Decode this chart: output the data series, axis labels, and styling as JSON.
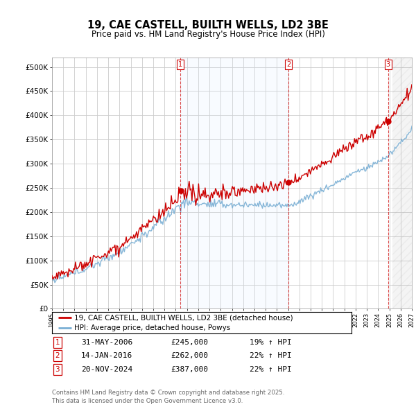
{
  "title": "19, CAE CASTELL, BUILTH WELLS, LD2 3BE",
  "subtitle": "Price paid vs. HM Land Registry's House Price Index (HPI)",
  "ylim": [
    0,
    520000
  ],
  "yticks": [
    0,
    50000,
    100000,
    150000,
    200000,
    250000,
    300000,
    350000,
    400000,
    450000,
    500000
  ],
  "ytick_labels": [
    "£0",
    "£50K",
    "£100K",
    "£150K",
    "£200K",
    "£250K",
    "£300K",
    "£350K",
    "£400K",
    "£450K",
    "£500K"
  ],
  "red_line_color": "#cc0000",
  "blue_line_color": "#7aafd4",
  "blue_fill_color": "#ddeeff",
  "vline_color": "#cc0000",
  "grid_color": "#cccccc",
  "background_color": "#ffffff",
  "legend_items": [
    "19, CAE CASTELL, BUILTH WELLS, LD2 3BE (detached house)",
    "HPI: Average price, detached house, Powys"
  ],
  "transactions": [
    {
      "num": "1",
      "date": "31-MAY-2006",
      "price": "£245,000",
      "hpi": "19% ↑ HPI",
      "year": 2006.42,
      "value": 245000
    },
    {
      "num": "2",
      "date": "14-JAN-2016",
      "price": "£262,000",
      "hpi": "22% ↑ HPI",
      "year": 2016.04,
      "value": 262000
    },
    {
      "num": "3",
      "date": "20-NOV-2024",
      "price": "£387,000",
      "hpi": "22% ↑ HPI",
      "year": 2024.89,
      "value": 387000
    }
  ],
  "footnote": "Contains HM Land Registry data © Crown copyright and database right 2025.\nThis data is licensed under the Open Government Licence v3.0.",
  "xstart": 1995,
  "xend": 2027
}
